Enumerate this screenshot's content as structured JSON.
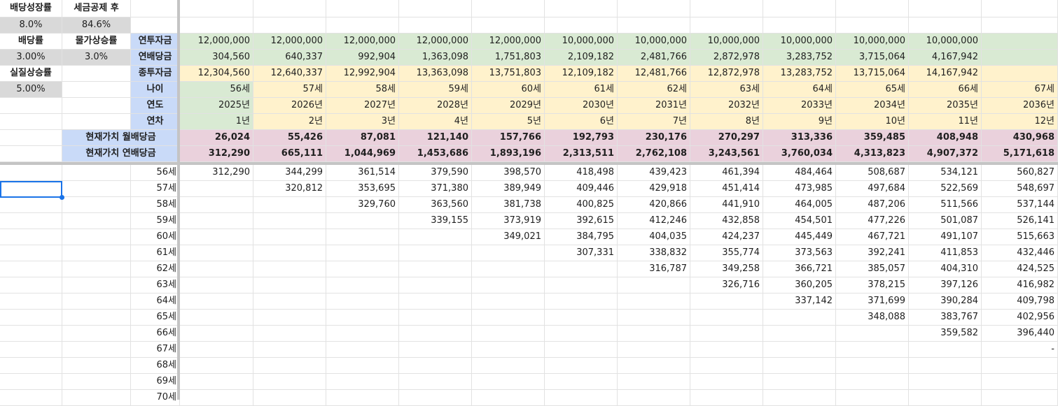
{
  "params": {
    "dividend_growth_label": "배당성장률",
    "dividend_growth_value": "8.0%",
    "after_tax_label": "세금공제 후",
    "after_tax_value": "84.6%",
    "dividend_yield_label": "배당률",
    "dividend_yield_value": "3.00%",
    "inflation_label": "물가상승률",
    "inflation_value": "3.0%",
    "real_growth_label": "실질상승률",
    "real_growth_value": "5.00%"
  },
  "row_labels": {
    "annual_investment": "연투자금",
    "annual_dividend": "연배당금",
    "total_investment": "종투자금",
    "age": "나이",
    "year": "연도",
    "year_count": "연차",
    "pv_monthly": "현재가치 월배당금",
    "pv_annual": "현재가치 연배당금"
  },
  "table": {
    "annual_investment": [
      "12,000,000",
      "12,000,000",
      "12,000,000",
      "12,000,000",
      "12,000,000",
      "10,000,000",
      "10,000,000",
      "10,000,000",
      "10,000,000",
      "10,000,000",
      "10,000,000",
      ""
    ],
    "annual_dividend": [
      "304,560",
      "640,337",
      "992,904",
      "1,363,098",
      "1,751,803",
      "2,109,182",
      "2,481,766",
      "2,872,978",
      "3,283,752",
      "3,715,064",
      "4,167,942",
      ""
    ],
    "total_investment": [
      "12,304,560",
      "12,640,337",
      "12,992,904",
      "13,363,098",
      "13,751,803",
      "12,109,182",
      "12,481,766",
      "12,872,978",
      "13,283,752",
      "13,715,064",
      "14,167,942",
      ""
    ],
    "age": [
      "56세",
      "57세",
      "58세",
      "59세",
      "60세",
      "61세",
      "62세",
      "63세",
      "64세",
      "65세",
      "66세",
      "67세"
    ],
    "year": [
      "2025년",
      "2026년",
      "2027년",
      "2028년",
      "2029년",
      "2030년",
      "2031년",
      "2032년",
      "2033년",
      "2034년",
      "2035년",
      "2036년"
    ],
    "year_count": [
      "1년",
      "2년",
      "3년",
      "4년",
      "5년",
      "6년",
      "7년",
      "8년",
      "9년",
      "10년",
      "11년",
      "12년"
    ],
    "pv_monthly": [
      "26,024",
      "55,426",
      "87,081",
      "121,140",
      "157,766",
      "192,793",
      "230,176",
      "270,297",
      "313,336",
      "359,485",
      "408,948",
      "430,968"
    ],
    "pv_annual": [
      "312,290",
      "665,111",
      "1,044,969",
      "1,453,686",
      "1,893,196",
      "2,313,511",
      "2,762,108",
      "3,243,561",
      "3,760,034",
      "4,313,823",
      "4,907,372",
      "5,171,618"
    ]
  },
  "lower": {
    "ages": [
      "56세",
      "57세",
      "58세",
      "59세",
      "60세",
      "61세",
      "62세",
      "63세",
      "64세",
      "65세",
      "66세",
      "67세",
      "68세",
      "69세",
      "70세"
    ],
    "rows": [
      [
        "312,290",
        "344,299",
        "361,514",
        "379,590",
        "398,570",
        "418,498",
        "439,423",
        "461,394",
        "484,464",
        "508,687",
        "534,121",
        "560,827"
      ],
      [
        "",
        "320,812",
        "353,695",
        "371,380",
        "389,949",
        "409,446",
        "429,918",
        "451,414",
        "473,985",
        "497,684",
        "522,569",
        "548,697"
      ],
      [
        "",
        "",
        "329,760",
        "363,560",
        "381,738",
        "400,825",
        "420,866",
        "441,910",
        "464,005",
        "487,206",
        "511,566",
        "537,144"
      ],
      [
        "",
        "",
        "",
        "339,155",
        "373,919",
        "392,615",
        "412,246",
        "432,858",
        "454,501",
        "477,226",
        "501,087",
        "526,141"
      ],
      [
        "",
        "",
        "",
        "",
        "349,021",
        "384,795",
        "404,035",
        "424,237",
        "445,449",
        "467,721",
        "491,107",
        "515,663"
      ],
      [
        "",
        "",
        "",
        "",
        "",
        "307,331",
        "338,832",
        "355,774",
        "373,563",
        "392,241",
        "411,853",
        "432,446"
      ],
      [
        "",
        "",
        "",
        "",
        "",
        "",
        "316,787",
        "349,258",
        "366,721",
        "385,057",
        "404,310",
        "424,525"
      ],
      [
        "",
        "",
        "",
        "",
        "",
        "",
        "",
        "326,716",
        "360,205",
        "378,215",
        "397,126",
        "416,982"
      ],
      [
        "",
        "",
        "",
        "",
        "",
        "",
        "",
        "",
        "337,142",
        "371,699",
        "390,284",
        "409,798"
      ],
      [
        "",
        "",
        "",
        "",
        "",
        "",
        "",
        "",
        "",
        "348,088",
        "383,767",
        "402,956"
      ],
      [
        "",
        "",
        "",
        "",
        "",
        "",
        "",
        "",
        "",
        "",
        "359,582",
        "396,440"
      ],
      [
        "",
        "",
        "",
        "",
        "",
        "",
        "",
        "",
        "",
        "",
        "",
        "-"
      ],
      [
        "",
        "",
        "",
        "",
        "",
        "",
        "",
        "",
        "",
        "",
        "",
        ""
      ],
      [
        "",
        "",
        "",
        "",
        "",
        "",
        "",
        "",
        "",
        "",
        "",
        ""
      ],
      [
        "",
        "",
        "",
        "",
        "",
        "",
        "",
        "",
        "",
        "",
        "",
        ""
      ]
    ]
  },
  "colors": {
    "green": "#d9ead3",
    "yellow": "#fff2cc",
    "pink": "#ead1dc",
    "blue": "#c9daf8",
    "gray": "#d9d9d9",
    "selection": "#1a73e8"
  }
}
